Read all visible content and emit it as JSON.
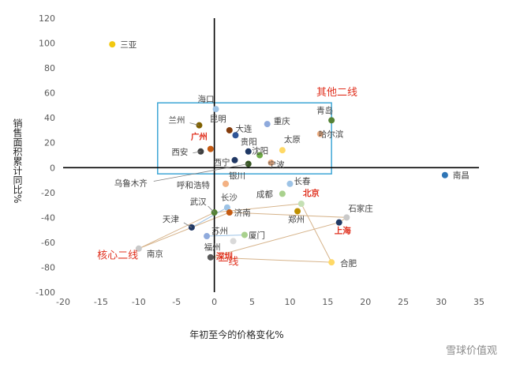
{
  "chart_data": {
    "type": "scatter",
    "xlabel": "年初至今的价格变化%",
    "ylabel": "销售面积累计同比%",
    "xlim": [
      -20,
      35
    ],
    "ylim": [
      -100,
      120
    ],
    "xticks": [
      -20,
      -15,
      -10,
      -5,
      0,
      5,
      10,
      15,
      20,
      25,
      30,
      35
    ],
    "yticks": [
      -100,
      -80,
      -60,
      -40,
      -20,
      0,
      20,
      40,
      60,
      80,
      100,
      120
    ],
    "grid": false,
    "annotations": [
      {
        "text": "其他二线",
        "x": 13.5,
        "y": 58,
        "color": "#e0301e"
      },
      {
        "text": "核心二线",
        "x": -15.5,
        "y": -73,
        "color": "#e0301e"
      },
      {
        "text": "一线",
        "x": 0.5,
        "y": -78,
        "color": "#e0301e"
      }
    ],
    "box": {
      "x0": -7.5,
      "x1": 15.5,
      "y0": -5,
      "y1": 52,
      "color": "#3fa7d6"
    },
    "points": [
      {
        "name": "三亚",
        "x": -13.5,
        "y": 99,
        "color": "#f2c80f"
      },
      {
        "name": "海口",
        "x": 0.2,
        "y": 47,
        "color": "#9dc3e6"
      },
      {
        "name": "兰州",
        "x": -2,
        "y": 34,
        "color": "#7f6000"
      },
      {
        "name": "昆明",
        "x": 2,
        "y": 30,
        "color": "#843c0c"
      },
      {
        "name": "重庆",
        "x": 7,
        "y": 35,
        "color": "#8faadc"
      },
      {
        "name": "青岛",
        "x": 15.5,
        "y": 38,
        "color": "#548235"
      },
      {
        "name": "大连",
        "x": 2.8,
        "y": 26,
        "color": "#2f5597"
      },
      {
        "name": "哈尔滨",
        "x": 14,
        "y": 27,
        "color": "#f4b183"
      },
      {
        "name": "广州",
        "x": -0.5,
        "y": 15,
        "color": "#c55a11",
        "highlight": true
      },
      {
        "name": "太原",
        "x": 9,
        "y": 14,
        "color": "#ffd966"
      },
      {
        "name": "西安",
        "x": -1.8,
        "y": 13,
        "color": "#404040"
      },
      {
        "name": "贵阳",
        "x": 4.5,
        "y": 13,
        "color": "#1f3864"
      },
      {
        "name": "沈阳",
        "x": 6,
        "y": 10,
        "color": "#70ad47"
      },
      {
        "name": "西宁",
        "x": 2.7,
        "y": 6,
        "color": "#203864"
      },
      {
        "name": "宁波",
        "x": 7.5,
        "y": 4,
        "color": "#f4b183"
      },
      {
        "name": "乌鲁木齐",
        "x": 4.5,
        "y": 3,
        "color": "#375623"
      },
      {
        "name": "南昌",
        "x": 30.5,
        "y": -6,
        "color": "#2e75b6"
      },
      {
        "name": "银川",
        "x": 1.5,
        "y": -13,
        "color": "#a9d18e"
      },
      {
        "name": "呼和浩特",
        "x": 1.5,
        "y": -13,
        "color": "#f4b183"
      },
      {
        "name": "长春",
        "x": 10,
        "y": -13,
        "color": "#9dc3e6"
      },
      {
        "name": "成都",
        "x": 9,
        "y": -21,
        "color": "#a9d18e"
      },
      {
        "name": "北京",
        "x": 11.5,
        "y": -29,
        "color": "#c5e0b4",
        "highlight": true
      },
      {
        "name": "长沙",
        "x": 1.7,
        "y": -32,
        "color": "#9dc3e6"
      },
      {
        "name": "武汉",
        "x": 0,
        "y": -36,
        "color": "#548235"
      },
      {
        "name": "济南",
        "x": 2,
        "y": -36,
        "color": "#c55a11"
      },
      {
        "name": "郑州",
        "x": 11,
        "y": -35,
        "color": "#bf9000"
      },
      {
        "name": "石家庄",
        "x": 17.5,
        "y": -40,
        "color": "#c9c9c9"
      },
      {
        "name": "上海",
        "x": 16.5,
        "y": -44,
        "color": "#1f3864",
        "highlight": true
      },
      {
        "name": "天津",
        "x": -3,
        "y": -48,
        "color": "#203864"
      },
      {
        "name": "苏州",
        "x": -1,
        "y": -55,
        "color": "#8faadc"
      },
      {
        "name": "厦门",
        "x": 4,
        "y": -54,
        "color": "#a9d18e"
      },
      {
        "name": "福州",
        "x": 2.5,
        "y": -59,
        "color": "#d9d9d9"
      },
      {
        "name": "南京",
        "x": -10,
        "y": -65,
        "color": "#c9c9c9"
      },
      {
        "name": "深圳",
        "x": -0.5,
        "y": -72,
        "color": "#595959",
        "highlight": true
      },
      {
        "name": "合肥",
        "x": 15.5,
        "y": -76,
        "color": "#ffd966"
      }
    ],
    "connector_paths": [
      {
        "color": "#d6b38a",
        "points": [
          [
            -10,
            -65
          ],
          [
            0,
            -36
          ],
          [
            11.5,
            -29
          ],
          [
            15.5,
            -76
          ],
          [
            -0.5,
            -72
          ],
          [
            16.5,
            -44
          ],
          [
            17.5,
            -40
          ],
          [
            2,
            -36
          ],
          [
            -10,
            -65
          ]
        ]
      },
      {
        "color": "#9dc3e6",
        "points": [
          [
            -3,
            -48
          ],
          [
            1.7,
            -32
          ]
        ]
      },
      {
        "color": "#9dc3e6",
        "points": [
          [
            -1,
            -55
          ],
          [
            4,
            -54
          ]
        ]
      }
    ]
  },
  "watermark": "雪球价值观"
}
